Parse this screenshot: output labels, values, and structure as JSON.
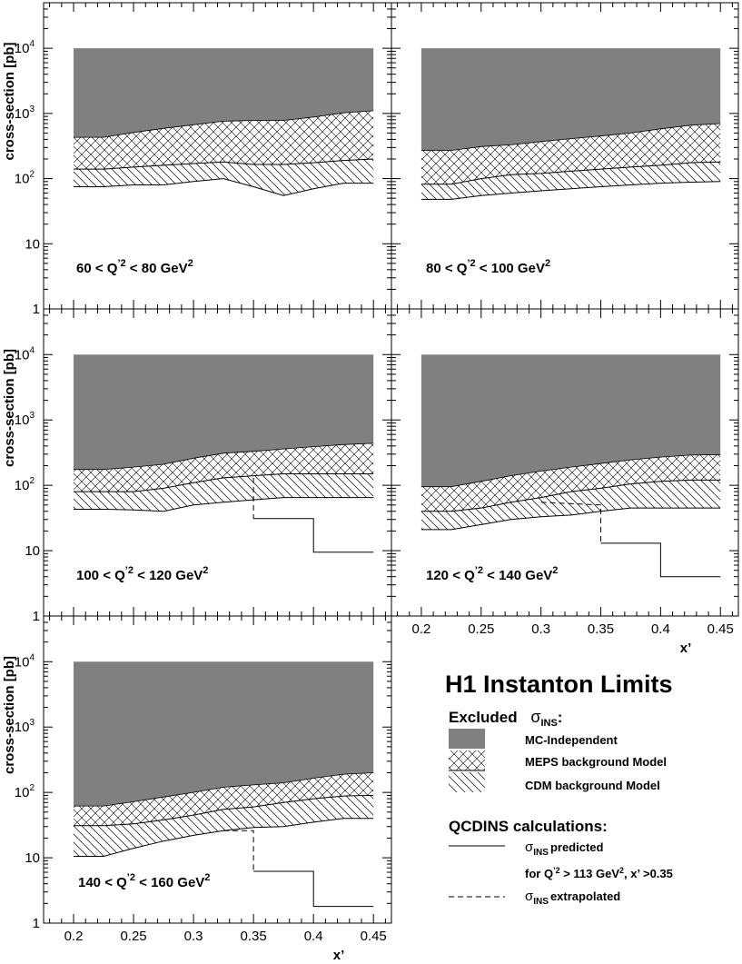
{
  "chart_data": {
    "type": "area",
    "title": "H1 Instanton Limits",
    "y_scale": "log",
    "ylim": [
      1,
      50000
    ],
    "xlim": [
      0.175,
      0.465
    ],
    "xlabel": "x’",
    "ylabel": "cross-section [pb]",
    "x_ticks": [
      "0.2",
      "0.25",
      "0.3",
      "0.35",
      "0.4",
      "0.45"
    ],
    "y_ticks": [
      {
        "value": 1,
        "base": "1",
        "exp": ""
      },
      {
        "value": 10,
        "base": "10",
        "exp": ""
      },
      {
        "value": 100,
        "base": "10",
        "exp": "2"
      },
      {
        "value": 1000,
        "base": "10",
        "exp": "3"
      },
      {
        "value": 10000,
        "base": "10",
        "exp": "4"
      }
    ],
    "mc_top": 10000,
    "x": [
      0.2,
      0.225,
      0.25,
      0.275,
      0.3,
      0.325,
      0.35,
      0.375,
      0.4,
      0.425,
      0.45
    ],
    "series_names": {
      "mc": "MC-Independent",
      "meps": "MEPS background Model",
      "cdm": "CDM background Model",
      "predicted": "predicted",
      "extrapolated": "extrapolated"
    },
    "panels": [
      {
        "label": {
          "pre": "60 < Q",
          "mid": "< 80 GeV",
          "sup1": "’2",
          "sup2": "2"
        },
        "mc_lower": [
          430,
          430,
          510,
          590,
          670,
          760,
          780,
          780,
          880,
          1020,
          1100
        ],
        "meps_lower": [
          140,
          140,
          150,
          160,
          170,
          180,
          165,
          165,
          175,
          190,
          200
        ],
        "cdm_lower": [
          75,
          75,
          80,
          80,
          90,
          100,
          75,
          55,
          70,
          85,
          85
        ],
        "predicted": [],
        "extrapolated": []
      },
      {
        "label": {
          "pre": "80 < Q",
          "mid": "< 100 GeV",
          "sup1": "’2",
          "sup2": "2"
        },
        "mc_lower": [
          270,
          270,
          310,
          330,
          370,
          410,
          450,
          500,
          580,
          660,
          700
        ],
        "meps_lower": [
          82,
          82,
          100,
          115,
          120,
          130,
          140,
          150,
          160,
          175,
          180
        ],
        "cdm_lower": [
          48,
          48,
          55,
          60,
          65,
          70,
          75,
          80,
          85,
          88,
          90
        ],
        "predicted": [],
        "extrapolated": []
      },
      {
        "label": {
          "pre": "100 < Q",
          "mid": "< 120 GeV",
          "sup1": "’2",
          "sup2": "2"
        },
        "mc_lower": [
          175,
          175,
          190,
          210,
          260,
          310,
          330,
          360,
          390,
          420,
          440
        ],
        "meps_lower": [
          80,
          80,
          80,
          90,
          110,
          130,
          140,
          150,
          150,
          150,
          150
        ],
        "cdm_lower": [
          43,
          43,
          42,
          40,
          50,
          55,
          60,
          65,
          65,
          65,
          65
        ],
        "predicted": [
          [
            0.35,
            31
          ],
          [
            0.4,
            31
          ],
          [
            0.4,
            9.5
          ],
          [
            0.45,
            9.5
          ]
        ],
        "extrapolated": [
          [
            0.35,
            130
          ],
          [
            0.35,
            31
          ]
        ]
      },
      {
        "label": {
          "pre": "120 < Q",
          "mid": "< 140 GeV",
          "sup1": "’2",
          "sup2": "2"
        },
        "mc_lower": [
          95,
          95,
          115,
          140,
          165,
          190,
          215,
          245,
          270,
          290,
          295
        ],
        "meps_lower": [
          40,
          40,
          45,
          55,
          65,
          80,
          90,
          105,
          115,
          120,
          120
        ],
        "cdm_lower": [
          21,
          21,
          25,
          30,
          33,
          35,
          40,
          45,
          45,
          45,
          45
        ],
        "predicted": [
          [
            0.35,
            13
          ],
          [
            0.4,
            13
          ],
          [
            0.4,
            4
          ],
          [
            0.45,
            4
          ]
        ],
        "extrapolated": [
          [
            0.3,
            55
          ],
          [
            0.35,
            50
          ],
          [
            0.35,
            13
          ]
        ]
      },
      {
        "label": {
          "pre": "140 < Q",
          "mid": "< 160 GeV",
          "sup1": "’2",
          "sup2": "2"
        },
        "mc_lower": [
          62,
          62,
          72,
          85,
          100,
          120,
          130,
          140,
          165,
          190,
          200
        ],
        "meps_lower": [
          31,
          31,
          33,
          38,
          45,
          55,
          60,
          70,
          80,
          88,
          90
        ],
        "cdm_lower": [
          10.5,
          10.5,
          14,
          18,
          22,
          26,
          29,
          30,
          35,
          40,
          40
        ],
        "predicted": [
          [
            0.35,
            6.2
          ],
          [
            0.4,
            6.2
          ],
          [
            0.4,
            1.8
          ],
          [
            0.45,
            1.8
          ]
        ],
        "extrapolated": [
          [
            0.325,
            26
          ],
          [
            0.35,
            26
          ],
          [
            0.35,
            6.2
          ]
        ]
      }
    ]
  },
  "legend": {
    "title": "H1 Instanton Limits",
    "excluded_label": "Excluded",
    "sigma_symbol": "σ",
    "sigma_sub": "INS",
    "colon": ":",
    "mc_label": "MC-Independent",
    "meps_label": "MEPS background Model",
    "cdm_label": "CDM background Model",
    "qcdins_label": "QCDINS calculations:",
    "predicted_label": "predicted",
    "cut_pre": "for Q",
    "cut_sup1": "’2",
    "cut_mid": " > 113 GeV",
    "cut_sup2": "2",
    "cut_post": ", x’ >0.35",
    "extrapolated_label": "extrapolated"
  },
  "colors": {
    "mc_fill": "#808080",
    "hatch": "#000000",
    "frame": "#000000"
  }
}
